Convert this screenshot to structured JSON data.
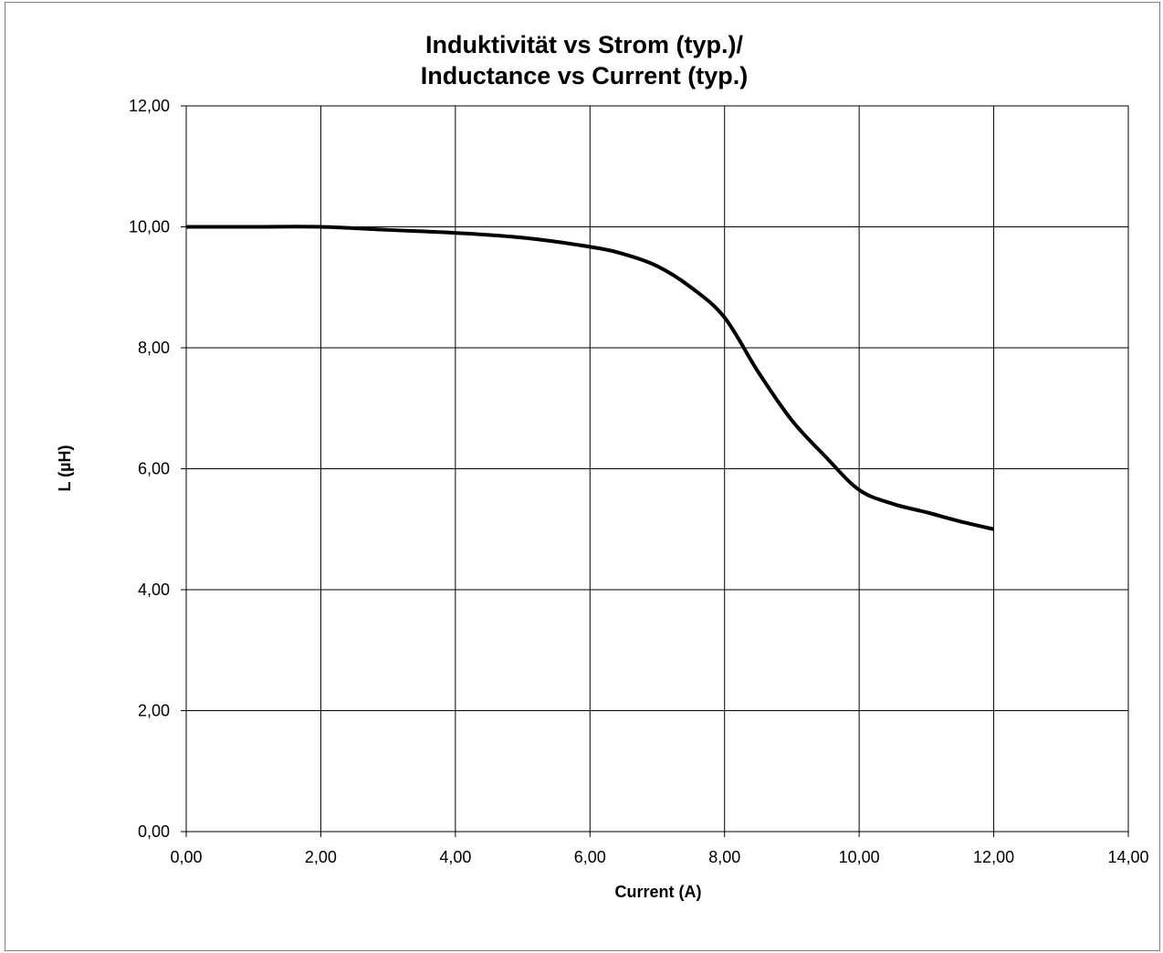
{
  "chart_data": {
    "type": "line",
    "title_line1": "Induktivität vs Strom (typ.)/",
    "title_line2": "Inductance vs Current (typ.)",
    "xlabel": "Current (A)",
    "ylabel": "L (µH)",
    "xlim": [
      0,
      14
    ],
    "ylim": [
      0,
      12
    ],
    "x_ticks": [
      "0,00",
      "2,00",
      "4,00",
      "6,00",
      "8,00",
      "10,00",
      "12,00",
      "14,00"
    ],
    "y_ticks": [
      "0,00",
      "2,00",
      "4,00",
      "6,00",
      "8,00",
      "10,00",
      "12,00"
    ],
    "grid": true,
    "series": [
      {
        "color": "#000000",
        "x": [
          0,
          1,
          2,
          3,
          4,
          5,
          6,
          6.5,
          7,
          7.5,
          8,
          8.5,
          9,
          9.5,
          10,
          10.5,
          11,
          11.5,
          12
        ],
        "y": [
          10.0,
          10.0,
          10.0,
          9.95,
          9.9,
          9.82,
          9.67,
          9.55,
          9.35,
          9.0,
          8.5,
          7.6,
          6.8,
          6.2,
          5.65,
          5.42,
          5.28,
          5.13,
          5.0
        ]
      }
    ]
  }
}
